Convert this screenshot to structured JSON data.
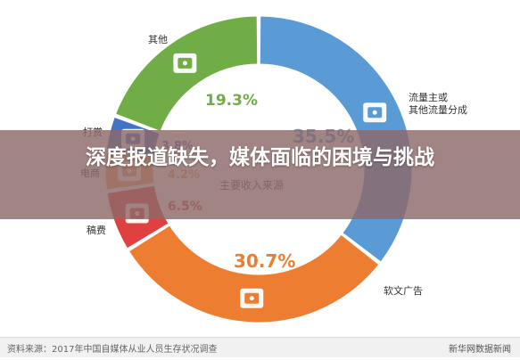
{
  "headline": "深度报道缺失，媒体面临的困境与挑战",
  "footer": {
    "source": "资料来源：2017年中国自媒体从业人员生存状况调查",
    "brand": "新华网数据新闻"
  },
  "center_label": "主要收入来源",
  "chart_data": {
    "type": "pie",
    "variant": "donut",
    "title": "主要收入来源",
    "slices": [
      {
        "label": "流量主或\n其他流量分成",
        "value": 35.5,
        "display": "35.5%",
        "color": "#5b9bd5",
        "icon": "hierarchy-icon"
      },
      {
        "label": "软文广告",
        "value": 30.7,
        "display": "30.7%",
        "color": "#ed7d31",
        "icon": "speaker-icon"
      },
      {
        "label": "稿费",
        "value": 6.5,
        "display": "6.5%",
        "color": "#e04040",
        "icon": "hand-coin-icon"
      },
      {
        "label": "电商",
        "value": 4.2,
        "display": "4.2%",
        "color": "#f2a65a",
        "icon": "cart-icon"
      },
      {
        "label": "打赏",
        "value": 3.8,
        "display": "3.8%",
        "color": "#4472c4",
        "icon": "coins-icon"
      },
      {
        "label": "其他",
        "value": 19.3,
        "display": "19.3%",
        "color": "#70ad47",
        "icon": "wallet-icon"
      }
    ]
  }
}
